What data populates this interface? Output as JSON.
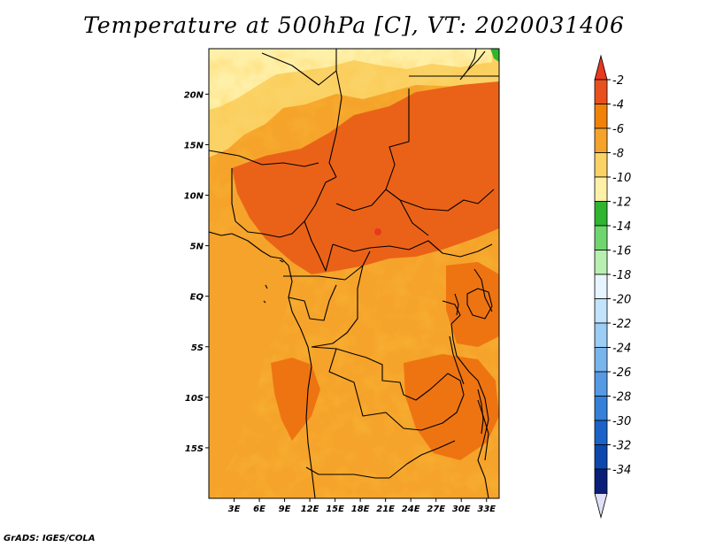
{
  "title": "Temperature at 500hPa [C], VT: 2020031406",
  "credit": "GrADS: IGES/COLA",
  "map": {
    "lat_range": [
      -20,
      24.5
    ],
    "lon_range": [
      0,
      34.5
    ],
    "lat_ticks": [
      {
        "value": 20,
        "label": "20N"
      },
      {
        "value": 15,
        "label": "15N"
      },
      {
        "value": 10,
        "label": "10N"
      },
      {
        "value": 5,
        "label": "5N"
      },
      {
        "value": 0,
        "label": "EQ"
      },
      {
        "value": -5,
        "label": "5S"
      },
      {
        "value": -10,
        "label": "10S"
      },
      {
        "value": -15,
        "label": "15S"
      }
    ],
    "lon_ticks": [
      {
        "value": 3,
        "label": "3E"
      },
      {
        "value": 6,
        "label": "6E"
      },
      {
        "value": 9,
        "label": "9E"
      },
      {
        "value": 12,
        "label": "12E"
      },
      {
        "value": 15,
        "label": "15E"
      },
      {
        "value": 18,
        "label": "18E"
      },
      {
        "value": 21,
        "label": "21E"
      },
      {
        "value": 24,
        "label": "24E"
      },
      {
        "value": 27,
        "label": "27E"
      },
      {
        "value": 30,
        "label": "30E"
      },
      {
        "value": 33,
        "label": "33E"
      }
    ]
  },
  "colorbar": {
    "labels": [
      "-2",
      "-4",
      "-6",
      "-8",
      "-10",
      "-12",
      "-14",
      "-16",
      "-18",
      "-20",
      "-22",
      "-24",
      "-26",
      "-28",
      "-30",
      "-32",
      "-34"
    ],
    "colors": [
      "#e8501e",
      "#f0820a",
      "#f5a32a",
      "#fbd266",
      "#fff0a8",
      "#2fb52f",
      "#6fd66f",
      "#b8f0b0",
      "#e6f5ff",
      "#c2e3fa",
      "#9bcdf5",
      "#77b5ec",
      "#559ae3",
      "#3580d8",
      "#1b63c8",
      "#0d48ad",
      "#0a1f78"
    ],
    "top_arrow_color": "#e8381e",
    "bottom_arrow_color": "#e0e0f8"
  }
}
